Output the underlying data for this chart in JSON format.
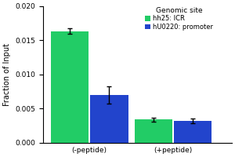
{
  "title": "Genomic site",
  "ylabel": "Fraction of Input",
  "xlabel_groups": [
    "(-peptide)",
    "(+peptide)"
  ],
  "series": [
    {
      "label": "hh25: ICR",
      "color": "#22cc66",
      "values": [
        0.0163,
        0.0034
      ],
      "errors": [
        0.0004,
        0.0003
      ]
    },
    {
      "label": "hU0220: promoter",
      "color": "#2244cc",
      "values": [
        0.007,
        0.0032
      ],
      "errors": [
        0.0013,
        0.0003
      ]
    }
  ],
  "ylim": [
    0,
    0.02
  ],
  "yticks": [
    0.0,
    0.005,
    0.01,
    0.015,
    0.02
  ],
  "bar_width": 0.18,
  "figsize": [
    3.0,
    2.0
  ],
  "dpi": 100,
  "background_color": "#ffffff",
  "plot_bg_color": "#ffffff",
  "title_fontsize": 6.5,
  "legend_fontsize": 6,
  "axis_fontsize": 7,
  "tick_fontsize": 6.5,
  "group_centers": [
    0.22,
    0.62
  ]
}
